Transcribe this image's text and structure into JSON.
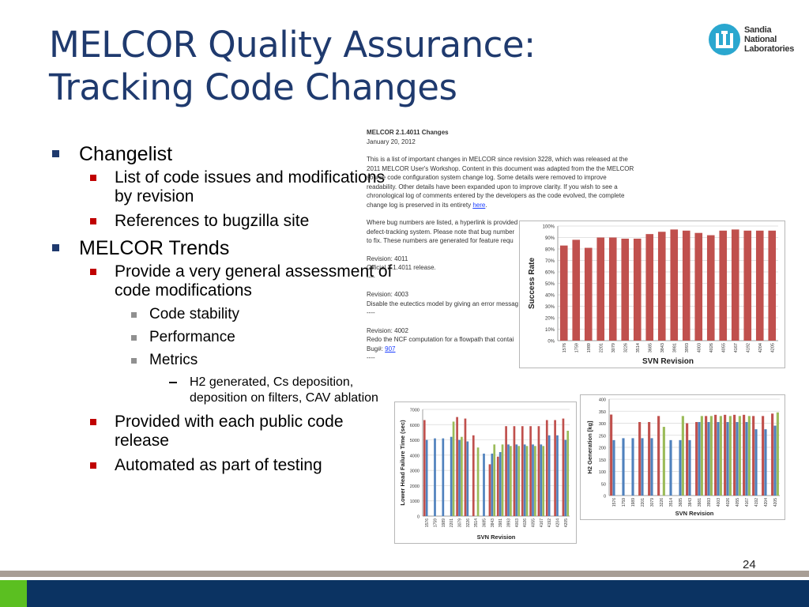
{
  "title": {
    "line1": "MELCOR Quality Assurance:",
    "line2": "Tracking Code Changes"
  },
  "logo": {
    "line1": "Sandia",
    "line2": "National",
    "line3": "Laboratories"
  },
  "bullets": [
    {
      "level": 1,
      "text": "Changelist"
    },
    {
      "level": 2,
      "text": "List of code issues and modifications by revision"
    },
    {
      "level": 2,
      "text": "References to bugzilla site"
    },
    {
      "level": 1,
      "text": "MELCOR Trends"
    },
    {
      "level": 2,
      "text": "Provide a very general assessment of code modifications"
    },
    {
      "level": 3,
      "text": "Code stability"
    },
    {
      "level": 3,
      "text": "Performance"
    },
    {
      "level": 3,
      "text": "Metrics"
    },
    {
      "level": 4,
      "text": "H2 generated, Cs deposition, deposition on filters, CAV ablation"
    },
    {
      "level": 2,
      "text": "Provided with each public code release"
    },
    {
      "level": 2,
      "text": "Automated as part of testing"
    }
  ],
  "doc": {
    "title": "MELCOR 2.1.4011 Changes",
    "date": "January 20, 2012",
    "intro": "This is a list of important changes in MELCOR since revision 3228,  which was released at the 2011 MELCOR User's Workshop. Content in this document was adapted from the the MELCOR source code configuration system change log. Some details were removed to improve readability. Other details have been expanded upon to improve clarity. If you wish to  see a chronological log of comments entered by the developers as the code evolved, the complete change log is preserved in its entirety",
    "intro_link": "here",
    "bug_note_1": "Where bug numbers are listed, a hyperlink is provided",
    "bug_note_2": "defect-tracking system. Please note that bug number",
    "bug_note_3": "to fix. These numbers are generated for feature requ",
    "rev1": "Revision: 4011",
    "rev1_text": "Official 2.1.4011  release.",
    "sep1": "----",
    "rev2": "Revision: 4003",
    "rev2_text": "Disable the eutectics model by giving an error messag",
    "sep2": "----",
    "rev3": "Revision: 4002",
    "rev3_text": "Redo the NCF computation for a flowpath that contai",
    "bug_label": "Bug#:",
    "bug_link": "907",
    "sep3": "----"
  },
  "page_number": "24",
  "colors": {
    "title": "#1f3a6e",
    "bar_red": "#c0504d",
    "bar_blue": "#4f81bd",
    "bar_green": "#9bbb59",
    "footer": "#0b3362"
  },
  "chart_data": [
    {
      "type": "bar",
      "xlabel": "SVN Revision",
      "ylabel": "Success Rate",
      "ylim": [
        0,
        100
      ],
      "yticks": [
        "0%",
        "10%",
        "20%",
        "30%",
        "40%",
        "50%",
        "60%",
        "70%",
        "80%",
        "90%",
        "100%"
      ],
      "categories": [
        "1576",
        "1759",
        "1989",
        "2201",
        "3079",
        "3226",
        "3514",
        "3685",
        "3843",
        "3981",
        "3993",
        "4003",
        "4026",
        "4055",
        "4167",
        "4192",
        "4204",
        "4205"
      ],
      "values": [
        83,
        88,
        81,
        90,
        90,
        89,
        89,
        93,
        95,
        97,
        96,
        94,
        92,
        96,
        97,
        96,
        96,
        96
      ]
    },
    {
      "type": "bar",
      "xlabel": "SVN Revision",
      "ylabel": "Lower Head Failure Time (sec)",
      "ylim": [
        0,
        7000
      ],
      "yticks": [
        "0",
        "1000",
        "2000",
        "3000",
        "4000",
        "5000",
        "6000",
        "7000"
      ],
      "categories": [
        "1576",
        "1759",
        "1989",
        "2201",
        "3079",
        "3226",
        "3514",
        "3685",
        "3843",
        "3981",
        "3993",
        "4003",
        "4026",
        "4055",
        "4167",
        "4192",
        "4204",
        "4205"
      ],
      "series": [
        {
          "values": [
            6300,
            0,
            0,
            0,
            6500,
            6400,
            5300,
            0,
            3400,
            3900,
            5900,
            5900,
            5900,
            5900,
            5900,
            6300,
            6300,
            6400
          ]
        },
        {
          "values": [
            5000,
            5100,
            5100,
            5200,
            5000,
            4900,
            0,
            4100,
            4100,
            4200,
            4700,
            4700,
            4700,
            4700,
            4700,
            5300,
            5300,
            5000
          ]
        },
        {
          "values": [
            0,
            0,
            0,
            6200,
            5200,
            0,
            4500,
            0,
            4700,
            4700,
            4600,
            4600,
            4600,
            4600,
            4600,
            0,
            0,
            5600
          ]
        }
      ]
    },
    {
      "type": "bar",
      "xlabel": "SVN Revision",
      "ylabel": "H2 Generation [kg]",
      "ylim": [
        0,
        400
      ],
      "yticks": [
        "0",
        "50",
        "100",
        "150",
        "200",
        "250",
        "300",
        "350",
        "400"
      ],
      "categories": [
        "1576",
        "1759",
        "1989",
        "2201",
        "3079",
        "3226",
        "3514",
        "3685",
        "3843",
        "3981",
        "3993",
        "4003",
        "4026",
        "4055",
        "4167",
        "4192",
        "4204",
        "4205"
      ],
      "series": [
        {
          "values": [
            336,
            0,
            0,
            305,
            305,
            330,
            0,
            0,
            300,
            305,
            330,
            335,
            335,
            335,
            335,
            330,
            330,
            340
          ]
        },
        {
          "values": [
            230,
            238,
            238,
            238,
            238,
            0,
            230,
            230,
            230,
            305,
            305,
            305,
            305,
            305,
            305,
            275,
            275,
            290
          ]
        },
        {
          "values": [
            0,
            0,
            0,
            0,
            0,
            285,
            0,
            330,
            0,
            330,
            330,
            330,
            330,
            330,
            330,
            0,
            0,
            345
          ]
        }
      ]
    }
  ]
}
